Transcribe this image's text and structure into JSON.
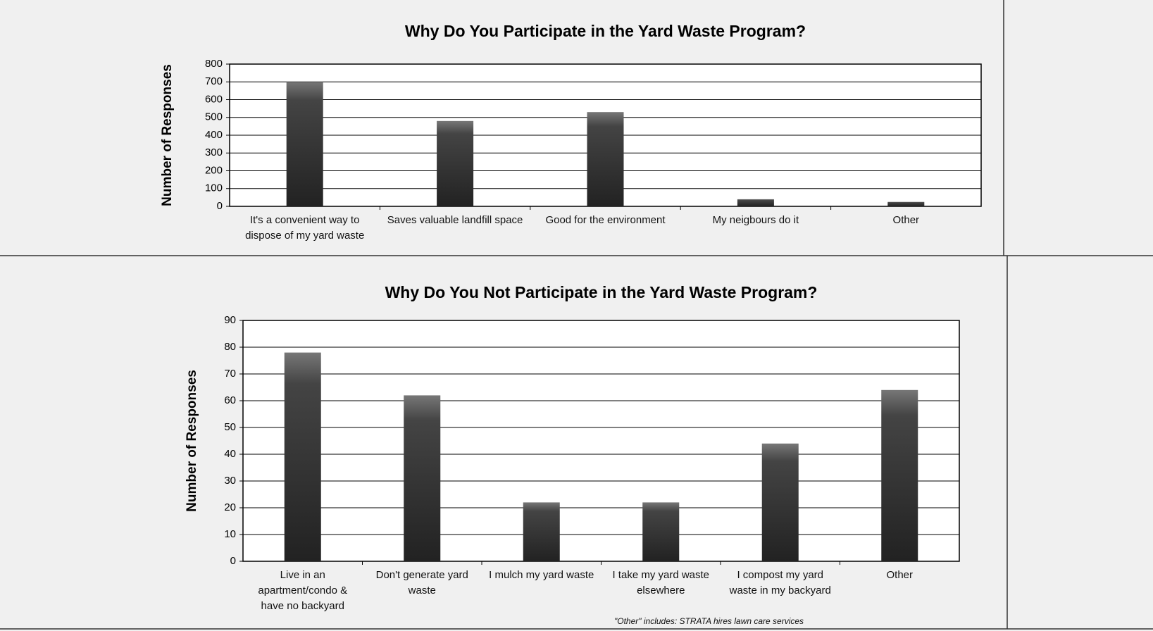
{
  "chart_data": [
    {
      "type": "bar",
      "title": "Why Do You Participate in the Yard Waste Program?",
      "y_label": "Number of Responses",
      "categories": [
        "It's a convenient way to dispose of my yard waste",
        "Saves valuable landfill space",
        "Good for the environment",
        "My neigbours do it",
        "Other"
      ],
      "values": [
        700,
        480,
        530,
        40,
        25
      ],
      "color": "#3a3a3a",
      "ylim": [
        0,
        800
      ],
      "yticks": [
        0,
        100,
        200,
        300,
        400,
        500,
        600,
        700,
        800
      ],
      "grid": true
    },
    {
      "type": "bar",
      "title": "Why Do You Not Participate in the Yard Waste Program?",
      "y_label": "Number of Responses",
      "categories": [
        "Live in an apartment/condo & have no backyard",
        "Don't generate yard waste",
        "I mulch my yard waste",
        "I take my yard waste elsewhere",
        "I compost my yard waste in my backyard",
        "Other"
      ],
      "values": [
        78,
        62,
        22,
        22,
        44,
        64
      ],
      "color": "#3a3a3a",
      "ylim": [
        0,
        90
      ],
      "yticks": [
        0,
        10,
        20,
        30,
        40,
        50,
        60,
        70,
        80,
        90
      ],
      "grid": true,
      "note": "\"Other\" includes: STRATA hires lawn care services"
    }
  ]
}
